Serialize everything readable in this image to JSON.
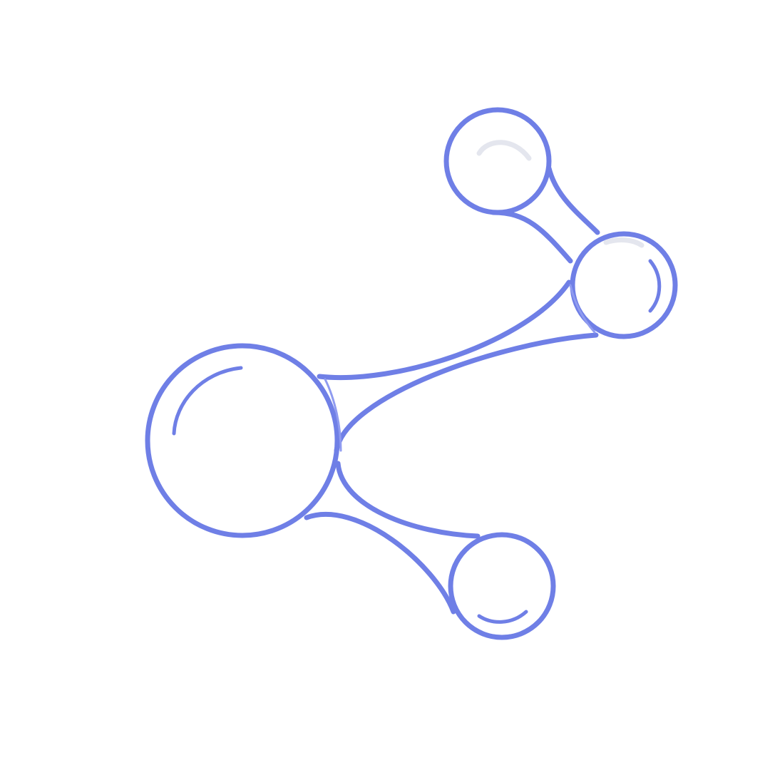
{
  "icon": {
    "name": "share-nodes-icon",
    "colors": {
      "accent": "#6f7fe6",
      "accent_light": "#8f9bf0",
      "shine": "#e4e6ee",
      "background": "#ffffff"
    }
  }
}
